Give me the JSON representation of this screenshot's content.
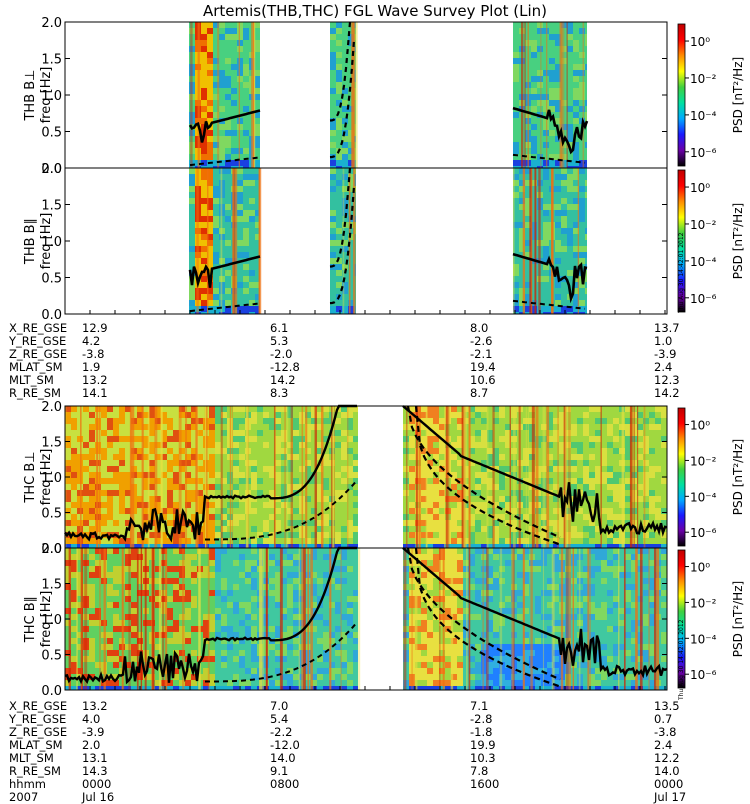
{
  "chart_data": {
    "type": "heatmap",
    "title": "Artemis(THB,THC) FGL Wave Survey Plot (Lin)",
    "panels": [
      {
        "id": "thb_perp",
        "ylabel": "THB B⊥",
        "yunit": "freq [Hz]",
        "ylim": [
          0,
          2.0
        ],
        "yticks": [
          "0.0",
          "0.5",
          "1.0",
          "1.5",
          "2.0"
        ]
      },
      {
        "id": "thb_par",
        "ylabel": "THB B∥",
        "yunit": "freq [Hz]",
        "ylim": [
          0,
          2.0
        ],
        "yticks": [
          "0.0",
          "0.5",
          "1.0",
          "1.5",
          "2.0"
        ]
      },
      {
        "id": "thc_perp",
        "ylabel": "THC B⊥",
        "yunit": "freq [Hz]",
        "ylim": [
          0,
          2.0
        ],
        "yticks": [
          "0.0",
          "0.5",
          "1.0",
          "1.5",
          "2.0"
        ]
      },
      {
        "id": "thc_par",
        "ylabel": "THC B∥",
        "yunit": "freq [Hz]",
        "ylim": [
          0,
          2.0
        ],
        "yticks": [
          "0.0",
          "0.5",
          "1.0",
          "1.5",
          "2.0"
        ]
      }
    ],
    "colorbar": {
      "label": "PSD [nT²/Hz]",
      "ticks": [
        "10⁰",
        "10⁻²",
        "10⁻⁴",
        "10⁻⁶"
      ],
      "colors": [
        "#000000",
        "#6a00a8",
        "#1a1aff",
        "#00aaff",
        "#00e0a0",
        "#40d040",
        "#ffff00",
        "#ff8c00",
        "#ff0000",
        "#c00000"
      ]
    },
    "timestamp": "Thu Aug 30 14:42:01 2012",
    "thb_ephemeris": {
      "rows": [
        {
          "label": "X_RE_GSE",
          "values": [
            "12.9",
            "6.1",
            "8.0",
            "13.7"
          ]
        },
        {
          "label": "Y_RE_GSE",
          "values": [
            "4.2",
            "5.3",
            "-2.6",
            "1.0"
          ]
        },
        {
          "label": "Z_RE_GSE",
          "values": [
            "-3.8",
            "-2.0",
            "-2.1",
            "-3.9"
          ]
        },
        {
          "label": "MLAT_SM",
          "values": [
            "1.9",
            "-12.8",
            "19.4",
            "2.4"
          ]
        },
        {
          "label": "MLT_SM",
          "values": [
            "13.2",
            "14.2",
            "10.6",
            "12.3"
          ]
        },
        {
          "label": "R_RE_SM",
          "values": [
            "14.1",
            "8.3",
            "8.7",
            "14.2"
          ]
        }
      ]
    },
    "thc_ephemeris": {
      "rows": [
        {
          "label": "X_RE_GSE",
          "values": [
            "13.2",
            "7.0",
            "7.1",
            "13.5"
          ]
        },
        {
          "label": "Y_RE_GSE",
          "values": [
            "4.0",
            "5.4",
            "-2.8",
            "0.7"
          ]
        },
        {
          "label": "Z_RE_GSE",
          "values": [
            "-3.9",
            "-2.2",
            "-1.8",
            "-3.8"
          ]
        },
        {
          "label": "MLAT_SM",
          "values": [
            "2.0",
            "-12.0",
            "19.9",
            "2.4"
          ]
        },
        {
          "label": "MLT_SM",
          "values": [
            "13.1",
            "14.0",
            "10.3",
            "12.2"
          ]
        },
        {
          "label": "R_RE_SM",
          "values": [
            "14.3",
            "9.1",
            "7.8",
            "14.0"
          ]
        },
        {
          "label": "hhmm",
          "values": [
            "0000",
            "0800",
            "1600",
            "0000"
          ]
        },
        {
          "label": "2007",
          "values": [
            "Jul 16",
            "",
            "",
            "Jul 17"
          ]
        }
      ]
    }
  }
}
